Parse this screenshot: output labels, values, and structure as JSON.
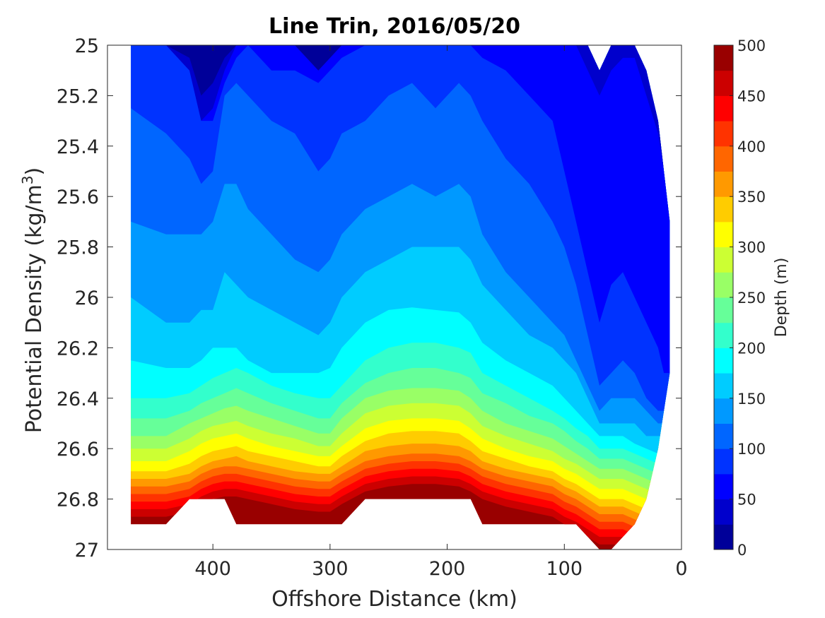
{
  "chart_data": {
    "type": "contour",
    "title": "Line Trin, 2016/05/20",
    "xlabel": "Offshore Distance (km)",
    "ylabel_main": "Potential Density (kg/m",
    "ylabel_sup": "3",
    "ylabel_tail": ")",
    "xlim": [
      490,
      0
    ],
    "ylim": [
      25,
      27
    ],
    "y_reversed": true,
    "x_reversed": true,
    "xticks": [
      400,
      300,
      200,
      100,
      0
    ],
    "yticks": [
      25,
      25.2,
      25.4,
      25.6,
      25.8,
      26,
      26.2,
      26.4,
      26.6,
      26.8,
      27
    ],
    "xtick_labels": [
      "400",
      "300",
      "200",
      "100",
      "0"
    ],
    "ytick_labels": [
      "25",
      "25.2",
      "25.4",
      "25.6",
      "25.8",
      "26",
      "26.2",
      "26.4",
      "26.6",
      "26.8",
      "27"
    ],
    "colorbar": {
      "label": "Depth (m)",
      "range": [
        0,
        500
      ],
      "step": 25,
      "ticks": [
        0,
        50,
        100,
        150,
        200,
        250,
        300,
        350,
        400,
        450,
        500
      ],
      "tick_labels": [
        "0",
        "50",
        "100",
        "150",
        "200",
        "250",
        "300",
        "350",
        "400",
        "450",
        "500"
      ],
      "colormap": "jet"
    },
    "stations_km": [
      470,
      440,
      420,
      410,
      400,
      390,
      380,
      370,
      350,
      330,
      310,
      300,
      290,
      270,
      250,
      230,
      210,
      190,
      180,
      170,
      150,
      130,
      110,
      100,
      90,
      80,
      70,
      60,
      50,
      40,
      30,
      20,
      15,
      10
    ],
    "data_top_sigma": [
      25,
      25,
      25,
      25,
      25,
      25,
      25,
      25,
      25,
      25,
      25,
      25,
      25,
      25,
      25,
      25,
      25,
      25,
      25,
      25,
      25,
      25,
      25,
      25,
      25,
      25,
      25.1,
      25,
      25,
      25,
      25.1,
      25.3,
      25.5,
      25.7
    ],
    "data_bottom_sigma": [
      26.9,
      26.9,
      26.8,
      26.8,
      26.8,
      26.8,
      26.9,
      26.9,
      26.9,
      26.9,
      26.9,
      26.9,
      26.9,
      26.8,
      26.8,
      26.8,
      26.8,
      26.8,
      26.8,
      26.9,
      26.9,
      26.9,
      26.9,
      26.9,
      26.9,
      26.95,
      27,
      27,
      26.95,
      26.9,
      26.8,
      26.6,
      26.45,
      26.3
    ],
    "contour_levels_sigma": [
      {
        "depth": 25,
        "sigma": [
          25.0,
          25.0,
          25.05,
          25.2,
          25.15,
          25.05,
          25.0,
          25.0,
          25.0,
          25.0,
          25.1,
          25.05,
          25.0,
          25.0,
          25.0,
          25.0,
          25.0,
          25.0,
          25.0,
          25.0,
          25.0,
          25.0,
          25.0,
          25.0,
          25.0,
          25.0,
          25.0,
          25.0,
          25.0,
          25.0,
          25.0,
          25.0,
          25.0,
          25.0
        ]
      },
      {
        "depth": 50,
        "sigma": [
          25.0,
          25.0,
          25.1,
          25.3,
          25.25,
          25.1,
          25.0,
          25.0,
          25.0,
          25.0,
          25.1,
          25.05,
          25.0,
          25.0,
          25.0,
          25.0,
          25.0,
          25.0,
          25.0,
          25.0,
          25.0,
          25.0,
          25.0,
          25.0,
          25.0,
          25.1,
          25.2,
          25.1,
          25.05,
          25.05,
          25.2,
          25.35,
          25.5,
          25.7
        ]
      },
      {
        "depth": 75,
        "sigma": [
          25.0,
          25.0,
          25.1,
          25.3,
          25.3,
          25.15,
          25.05,
          25.0,
          25.1,
          25.1,
          25.15,
          25.1,
          25.05,
          25.0,
          25.0,
          25.0,
          25.0,
          25.0,
          25.0,
          25.05,
          25.1,
          25.2,
          25.3,
          25.5,
          25.7,
          25.9,
          26.1,
          25.95,
          25.9,
          26.0,
          26.1,
          26.2,
          26.3,
          26.3
        ]
      },
      {
        "depth": 100,
        "sigma": [
          25.25,
          25.35,
          25.45,
          25.55,
          25.5,
          25.2,
          25.15,
          25.2,
          25.3,
          25.35,
          25.5,
          25.45,
          25.35,
          25.3,
          25.2,
          25.15,
          25.25,
          25.15,
          25.2,
          25.3,
          25.45,
          25.55,
          25.7,
          25.8,
          25.95,
          26.15,
          26.35,
          26.3,
          26.25,
          26.3,
          26.4,
          26.45,
          26.45,
          26.45
        ]
      },
      {
        "depth": 125,
        "sigma": [
          25.7,
          25.75,
          25.75,
          25.75,
          25.7,
          25.55,
          25.55,
          25.65,
          25.75,
          25.85,
          25.9,
          25.85,
          25.75,
          25.65,
          25.6,
          25.55,
          25.6,
          25.55,
          25.6,
          25.75,
          25.9,
          26.0,
          26.1,
          26.15,
          26.25,
          26.35,
          26.45,
          26.4,
          26.4,
          26.4,
          26.45,
          26.5,
          26.5,
          26.5
        ]
      },
      {
        "depth": 150,
        "sigma": [
          26.0,
          26.1,
          26.1,
          26.05,
          26.05,
          25.9,
          25.95,
          26.0,
          26.05,
          26.1,
          26.15,
          26.1,
          26.0,
          25.9,
          25.85,
          25.8,
          25.8,
          25.8,
          25.85,
          25.95,
          26.05,
          26.15,
          26.2,
          26.25,
          26.3,
          26.4,
          26.5,
          26.5,
          26.5,
          26.5,
          26.55,
          26.55,
          26.55,
          26.55
        ]
      },
      {
        "depth": 175,
        "sigma": [
          26.25,
          26.28,
          26.28,
          26.25,
          26.2,
          26.2,
          26.2,
          26.25,
          26.3,
          26.3,
          26.3,
          26.28,
          26.2,
          26.1,
          26.05,
          26.04,
          26.05,
          26.06,
          26.1,
          26.18,
          26.25,
          26.3,
          26.35,
          26.4,
          26.45,
          26.5,
          26.55,
          26.55,
          26.55,
          26.58,
          26.6,
          26.62,
          26.62,
          26.62
        ]
      },
      {
        "depth": 200,
        "sigma": [
          26.4,
          26.4,
          26.38,
          26.35,
          26.32,
          26.3,
          26.28,
          26.3,
          26.35,
          26.38,
          26.4,
          26.4,
          26.35,
          26.25,
          26.2,
          26.18,
          26.18,
          26.2,
          26.22,
          26.3,
          26.35,
          26.4,
          26.45,
          26.48,
          26.52,
          26.55,
          26.6,
          26.6,
          26.6,
          26.62,
          26.64,
          26.66,
          26.66,
          26.66
        ]
      },
      {
        "depth": 225,
        "sigma": [
          26.48,
          26.48,
          26.45,
          26.42,
          26.4,
          26.38,
          26.36,
          26.38,
          26.42,
          26.45,
          26.48,
          26.48,
          26.42,
          26.34,
          26.3,
          26.28,
          26.28,
          26.3,
          26.32,
          26.38,
          26.42,
          26.47,
          26.5,
          26.53,
          26.57,
          26.6,
          26.64,
          26.64,
          26.64,
          26.66,
          26.68,
          26.7,
          26.7,
          26.7
        ]
      },
      {
        "depth": 250,
        "sigma": [
          26.55,
          26.55,
          26.5,
          26.48,
          26.46,
          26.44,
          26.43,
          26.45,
          26.48,
          26.51,
          26.54,
          26.54,
          26.48,
          26.4,
          26.37,
          26.36,
          26.36,
          26.37,
          26.4,
          26.45,
          26.5,
          26.53,
          26.56,
          26.59,
          26.62,
          26.65,
          26.68,
          26.68,
          26.68,
          26.7,
          26.72,
          26.74,
          26.74,
          26.74
        ]
      },
      {
        "depth": 275,
        "sigma": [
          26.6,
          26.6,
          26.56,
          26.53,
          26.51,
          26.5,
          26.49,
          26.51,
          26.54,
          26.56,
          26.59,
          26.59,
          26.54,
          26.46,
          26.43,
          26.42,
          26.42,
          26.43,
          26.46,
          26.51,
          26.55,
          26.58,
          26.61,
          26.64,
          26.66,
          26.69,
          26.72,
          26.72,
          26.72,
          26.74,
          26.76,
          26.78,
          26.78,
          26.78
        ]
      },
      {
        "depth": 300,
        "sigma": [
          26.65,
          26.65,
          26.61,
          26.58,
          26.56,
          26.55,
          26.54,
          26.56,
          26.59,
          26.61,
          26.63,
          26.63,
          26.59,
          26.52,
          26.49,
          26.48,
          26.48,
          26.49,
          26.52,
          26.56,
          26.6,
          26.63,
          26.65,
          26.68,
          26.7,
          26.73,
          26.76,
          26.76,
          26.76,
          26.78,
          26.8,
          26.82,
          26.82,
          26.82
        ]
      },
      {
        "depth": 325,
        "sigma": [
          26.69,
          26.69,
          26.66,
          26.63,
          26.61,
          26.6,
          26.59,
          26.61,
          26.63,
          26.65,
          26.67,
          26.67,
          26.63,
          26.57,
          26.54,
          26.53,
          26.53,
          26.54,
          26.57,
          26.61,
          26.64,
          26.67,
          26.69,
          26.72,
          26.74,
          26.77,
          26.8,
          26.8,
          26.8,
          26.82,
          26.84,
          26.86,
          26.86,
          26.86
        ]
      },
      {
        "depth": 350,
        "sigma": [
          26.72,
          26.72,
          26.7,
          26.67,
          26.65,
          26.64,
          26.63,
          26.65,
          26.67,
          26.69,
          26.7,
          26.7,
          26.67,
          26.61,
          26.59,
          26.58,
          26.58,
          26.59,
          26.61,
          26.65,
          26.68,
          26.7,
          26.72,
          26.75,
          26.77,
          26.8,
          26.83,
          26.83,
          26.83,
          26.85,
          26.87,
          26.89,
          26.89,
          26.89
        ]
      },
      {
        "depth": 375,
        "sigma": [
          26.75,
          26.75,
          26.73,
          26.7,
          26.68,
          26.67,
          26.67,
          26.68,
          26.7,
          26.72,
          26.73,
          26.73,
          26.7,
          26.65,
          26.63,
          26.62,
          26.62,
          26.63,
          26.65,
          26.68,
          26.71,
          26.73,
          26.75,
          26.78,
          26.8,
          26.83,
          26.86,
          26.86,
          26.86,
          26.88,
          26.9,
          26.92,
          26.92,
          26.92
        ]
      },
      {
        "depth": 400,
        "sigma": [
          26.78,
          26.78,
          26.76,
          26.73,
          26.71,
          26.7,
          26.7,
          26.71,
          26.73,
          26.75,
          26.76,
          26.76,
          26.73,
          26.68,
          26.66,
          26.65,
          26.65,
          26.66,
          26.68,
          26.71,
          26.74,
          26.76,
          26.78,
          26.81,
          26.83,
          26.86,
          26.89,
          26.89,
          26.89,
          26.91,
          26.93,
          26.95,
          26.95,
          26.95
        ]
      },
      {
        "depth": 425,
        "sigma": [
          26.81,
          26.81,
          26.79,
          26.76,
          26.74,
          26.73,
          26.73,
          26.74,
          26.76,
          26.78,
          26.79,
          26.79,
          26.76,
          26.71,
          26.69,
          26.68,
          26.68,
          26.69,
          26.71,
          26.74,
          26.77,
          26.79,
          26.81,
          26.84,
          26.86,
          26.89,
          26.92,
          26.92,
          26.92,
          26.94,
          26.96,
          26.98,
          26.98,
          26.98
        ]
      },
      {
        "depth": 450,
        "sigma": [
          26.84,
          26.84,
          26.82,
          26.79,
          26.77,
          26.76,
          26.76,
          26.77,
          26.79,
          26.81,
          26.82,
          26.82,
          26.79,
          26.74,
          26.72,
          26.71,
          26.71,
          26.72,
          26.74,
          26.77,
          26.8,
          26.82,
          26.84,
          26.87,
          26.89,
          26.92,
          26.95,
          26.95,
          26.95,
          26.97,
          26.99,
          27.0,
          27.0,
          27.0
        ]
      },
      {
        "depth": 475,
        "sigma": [
          26.87,
          26.87,
          26.85,
          26.82,
          26.8,
          26.79,
          26.79,
          26.8,
          26.82,
          26.84,
          26.85,
          26.85,
          26.82,
          26.77,
          26.75,
          26.74,
          26.74,
          26.75,
          26.77,
          26.8,
          26.83,
          26.85,
          26.87,
          26.9,
          26.92,
          26.95,
          26.98,
          26.98,
          26.98,
          27.0,
          27.0,
          27.0,
          27.0,
          27.0
        ]
      }
    ]
  }
}
